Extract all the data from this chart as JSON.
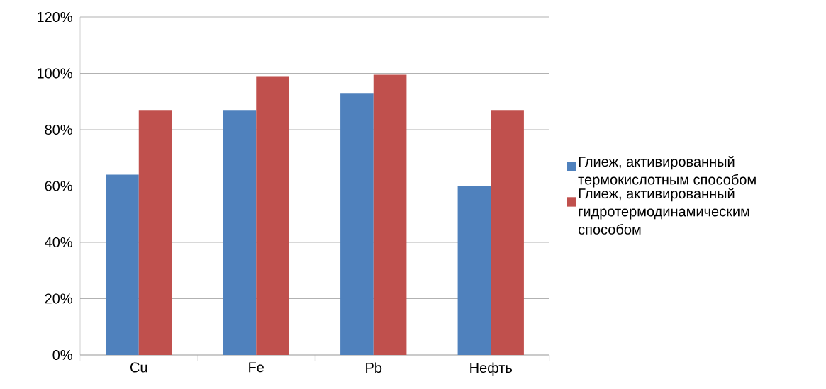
{
  "chart_data": {
    "type": "bar",
    "categories": [
      "Cu",
      "Fe",
      "Pb",
      "Нефть"
    ],
    "series": [
      {
        "name": "Глиеж, активированный термокислотным способом",
        "color": "#4f81bd",
        "values": [
          64,
          87,
          93,
          60
        ]
      },
      {
        "name": "Глиеж, активированный гидротермодинамическим способом",
        "color": "#c0504d",
        "values": [
          87,
          99,
          99.5,
          87
        ]
      }
    ],
    "ylim": [
      0,
      120
    ],
    "yticks": [
      {
        "value": 0,
        "label": "0%"
      },
      {
        "value": 20,
        "label": "20%"
      },
      {
        "value": 40,
        "label": "40%"
      },
      {
        "value": 60,
        "label": "60%"
      },
      {
        "value": 80,
        "label": "80%"
      },
      {
        "value": 100,
        "label": "100%"
      },
      {
        "value": 120,
        "label": "120%"
      }
    ],
    "grid": "y",
    "legend": "right"
  }
}
